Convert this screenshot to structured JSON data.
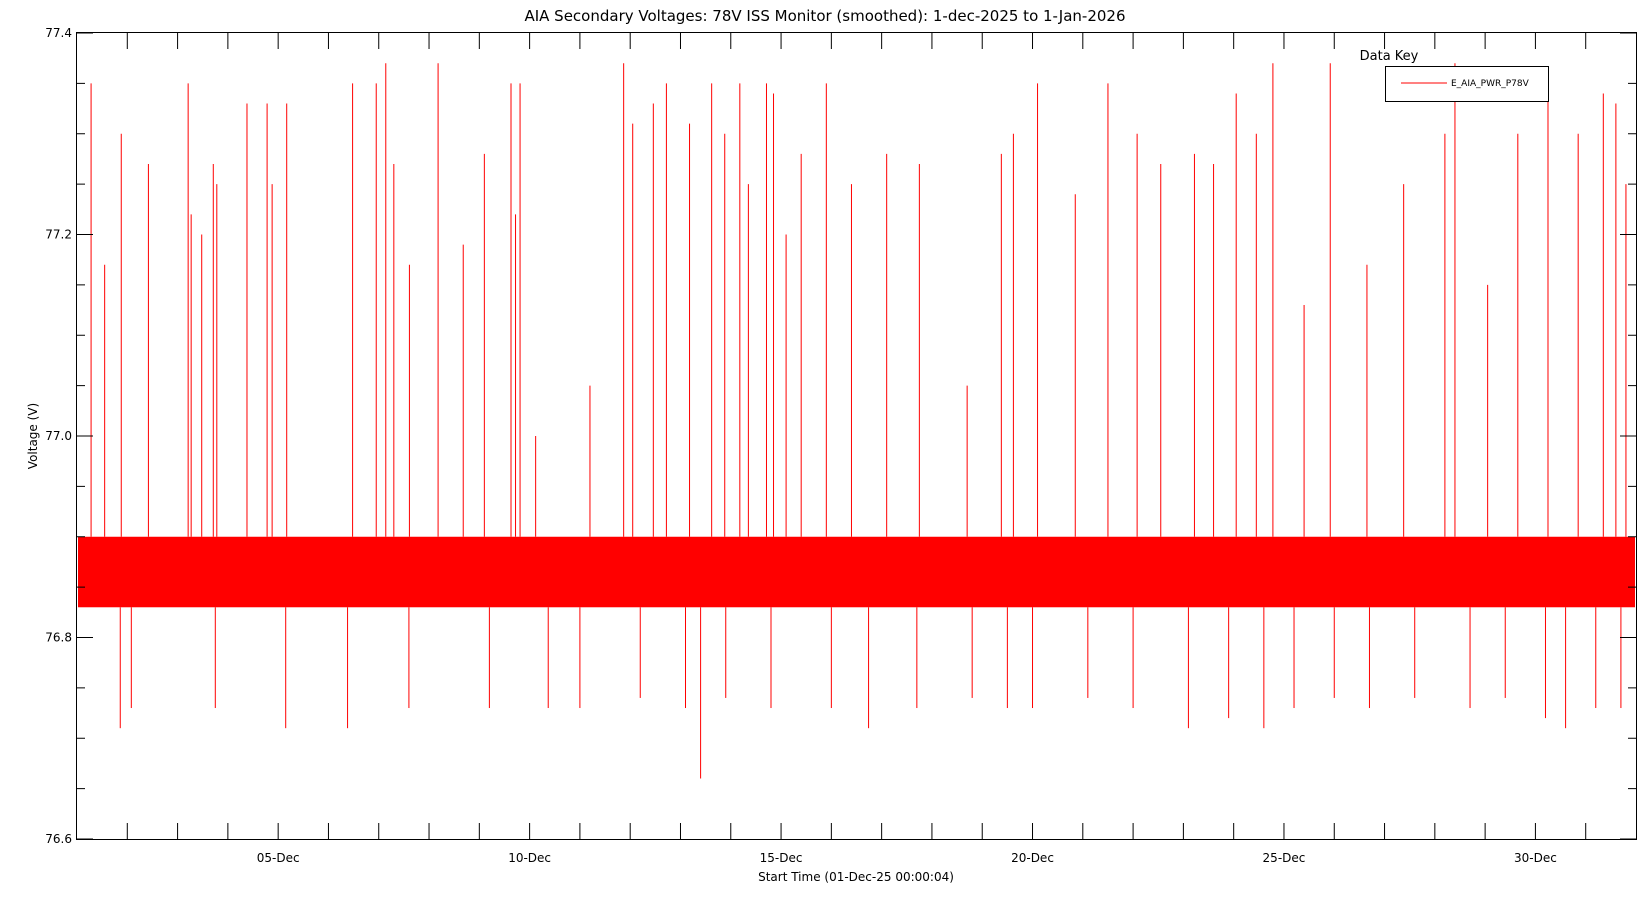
{
  "chart_data": {
    "type": "line",
    "title": "AIA Secondary Voltages: 78V ISS Monitor (smoothed): 1-dec-2025 to 1-Jan-2026",
    "xlabel": "Start Time (01-Dec-25 00:00:04)",
    "ylabel": "Voltage (V)",
    "ylim": [
      76.6,
      77.4
    ],
    "xlim_days": [
      0,
      31
    ],
    "y_ticks": [
      "76.6",
      "76.8",
      "77.0",
      "77.2",
      "77.4"
    ],
    "x_ticks": [
      {
        "day": 4,
        "label": "05-Dec"
      },
      {
        "day": 9,
        "label": "10-Dec"
      },
      {
        "day": 14,
        "label": "15-Dec"
      },
      {
        "day": 19,
        "label": "20-Dec"
      },
      {
        "day": 24,
        "label": "25-Dec"
      },
      {
        "day": 29,
        "label": "30-Dec"
      }
    ],
    "legend": {
      "title": "Data Key",
      "position": "top-right"
    },
    "series": [
      {
        "name": "E_AIA_PWR_P78V",
        "color": "#ff0000",
        "band": [
          76.83,
          76.9
        ],
        "spikes": [
          [
            0.28,
            77.35
          ],
          [
            0.55,
            77.17
          ],
          [
            0.88,
            77.3
          ],
          [
            1.42,
            77.27
          ],
          [
            2.21,
            77.35
          ],
          [
            2.27,
            77.22
          ],
          [
            2.48,
            77.2
          ],
          [
            2.71,
            77.27
          ],
          [
            2.78,
            77.25
          ],
          [
            3.38,
            77.33
          ],
          [
            3.78,
            77.33
          ],
          [
            3.88,
            77.25
          ],
          [
            4.17,
            77.33
          ],
          [
            5.48,
            77.35
          ],
          [
            5.95,
            77.35
          ],
          [
            6.14,
            77.37
          ],
          [
            6.3,
            77.27
          ],
          [
            6.61,
            77.17
          ],
          [
            7.18,
            77.37
          ],
          [
            7.68,
            77.19
          ],
          [
            8.1,
            77.28
          ],
          [
            8.63,
            77.35
          ],
          [
            8.72,
            77.22
          ],
          [
            8.81,
            77.35
          ],
          [
            9.12,
            77.0
          ],
          [
            10.2,
            77.05
          ],
          [
            10.87,
            77.37
          ],
          [
            11.05,
            77.31
          ],
          [
            11.46,
            77.33
          ],
          [
            11.72,
            77.35
          ],
          [
            12.18,
            77.31
          ],
          [
            12.62,
            77.35
          ],
          [
            12.88,
            77.3
          ],
          [
            13.18,
            77.35
          ],
          [
            13.35,
            77.25
          ],
          [
            13.71,
            77.35
          ],
          [
            13.85,
            77.34
          ],
          [
            14.1,
            77.2
          ],
          [
            14.4,
            77.28
          ],
          [
            14.9,
            77.35
          ],
          [
            15.4,
            77.25
          ],
          [
            16.1,
            77.28
          ],
          [
            16.75,
            77.27
          ],
          [
            17.7,
            77.05
          ],
          [
            18.38,
            77.28
          ],
          [
            18.62,
            77.3
          ],
          [
            19.1,
            77.35
          ],
          [
            19.85,
            77.24
          ],
          [
            20.5,
            77.35
          ],
          [
            21.08,
            77.3
          ],
          [
            21.55,
            77.27
          ],
          [
            22.22,
            77.28
          ],
          [
            22.6,
            77.27
          ],
          [
            23.05,
            77.34
          ],
          [
            23.45,
            77.3
          ],
          [
            23.78,
            77.37
          ],
          [
            24.4,
            77.13
          ],
          [
            24.92,
            77.37
          ],
          [
            25.65,
            77.17
          ],
          [
            26.38,
            77.25
          ],
          [
            27.2,
            77.3
          ],
          [
            27.4,
            77.37
          ],
          [
            28.05,
            77.15
          ],
          [
            28.65,
            77.3
          ],
          [
            29.25,
            77.35
          ],
          [
            29.85,
            77.3
          ],
          [
            30.35,
            77.34
          ],
          [
            30.6,
            77.33
          ],
          [
            30.8,
            77.25
          ]
        ],
        "dips": [
          [
            0.86,
            76.71
          ],
          [
            1.08,
            76.73
          ],
          [
            2.75,
            76.73
          ],
          [
            4.15,
            76.71
          ],
          [
            5.38,
            76.71
          ],
          [
            6.6,
            76.73
          ],
          [
            8.2,
            76.73
          ],
          [
            9.37,
            76.73
          ],
          [
            10.0,
            76.73
          ],
          [
            11.2,
            76.74
          ],
          [
            12.1,
            76.73
          ],
          [
            12.4,
            76.66
          ],
          [
            12.9,
            76.74
          ],
          [
            13.8,
            76.73
          ],
          [
            15.0,
            76.73
          ],
          [
            15.74,
            76.71
          ],
          [
            16.7,
            76.73
          ],
          [
            17.8,
            76.74
          ],
          [
            18.5,
            76.73
          ],
          [
            19.0,
            76.73
          ],
          [
            20.1,
            76.74
          ],
          [
            21.0,
            76.73
          ],
          [
            22.1,
            76.71
          ],
          [
            22.9,
            76.72
          ],
          [
            23.6,
            76.71
          ],
          [
            24.2,
            76.73
          ],
          [
            25.0,
            76.74
          ],
          [
            25.7,
            76.73
          ],
          [
            26.6,
            76.74
          ],
          [
            27.7,
            76.73
          ],
          [
            28.4,
            76.74
          ],
          [
            29.2,
            76.72
          ],
          [
            29.6,
            76.71
          ],
          [
            30.2,
            76.73
          ],
          [
            30.7,
            76.73
          ]
        ]
      }
    ]
  }
}
